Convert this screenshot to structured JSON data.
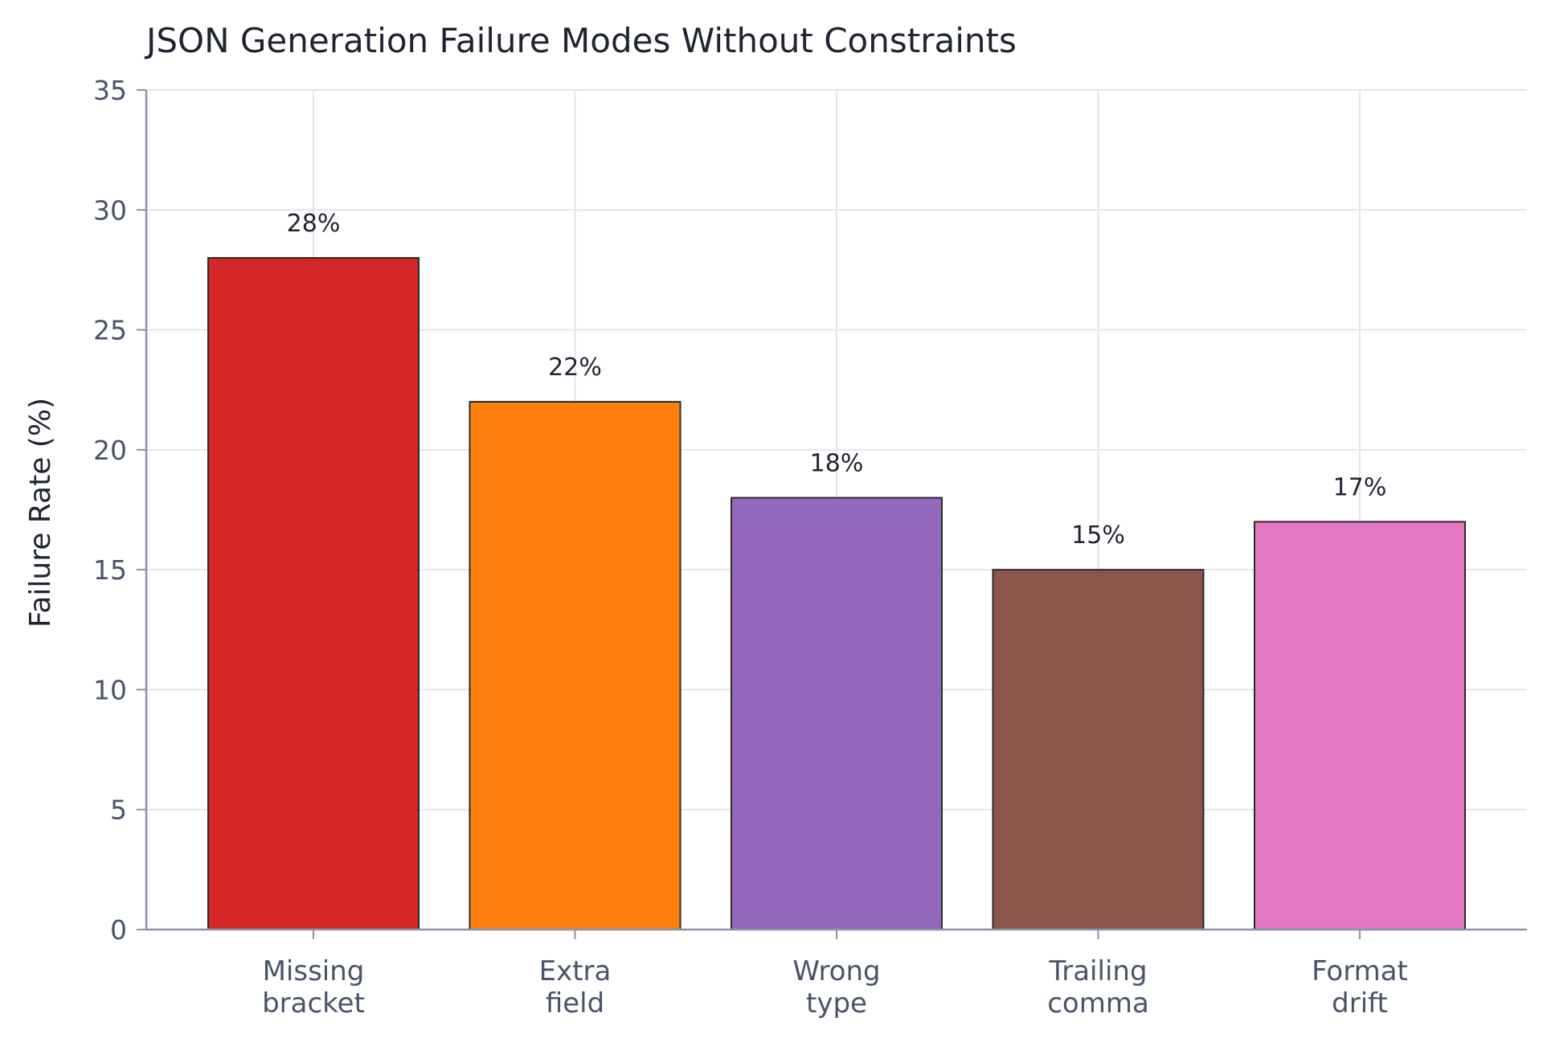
{
  "chart_data": {
    "type": "bar",
    "title": "JSON Generation Failure Modes Without Constraints",
    "xlabel": "",
    "ylabel": "Failure Rate (%)",
    "ylim": [
      0,
      35
    ],
    "yticks": [
      0,
      5,
      10,
      15,
      20,
      25,
      30,
      35
    ],
    "categories": [
      [
        "Missing",
        "bracket"
      ],
      [
        "Extra",
        "field"
      ],
      [
        "Wrong",
        "type"
      ],
      [
        "Trailing",
        "comma"
      ],
      [
        "Format",
        "drift"
      ]
    ],
    "values": [
      28,
      22,
      18,
      15,
      17
    ],
    "data_labels": [
      "28%",
      "22%",
      "18%",
      "15%",
      "17%"
    ],
    "colors": [
      "#d62728",
      "#ff7f0e",
      "#9467bd",
      "#8c564b",
      "#e377c2"
    ],
    "grid": true,
    "legend": "none"
  }
}
